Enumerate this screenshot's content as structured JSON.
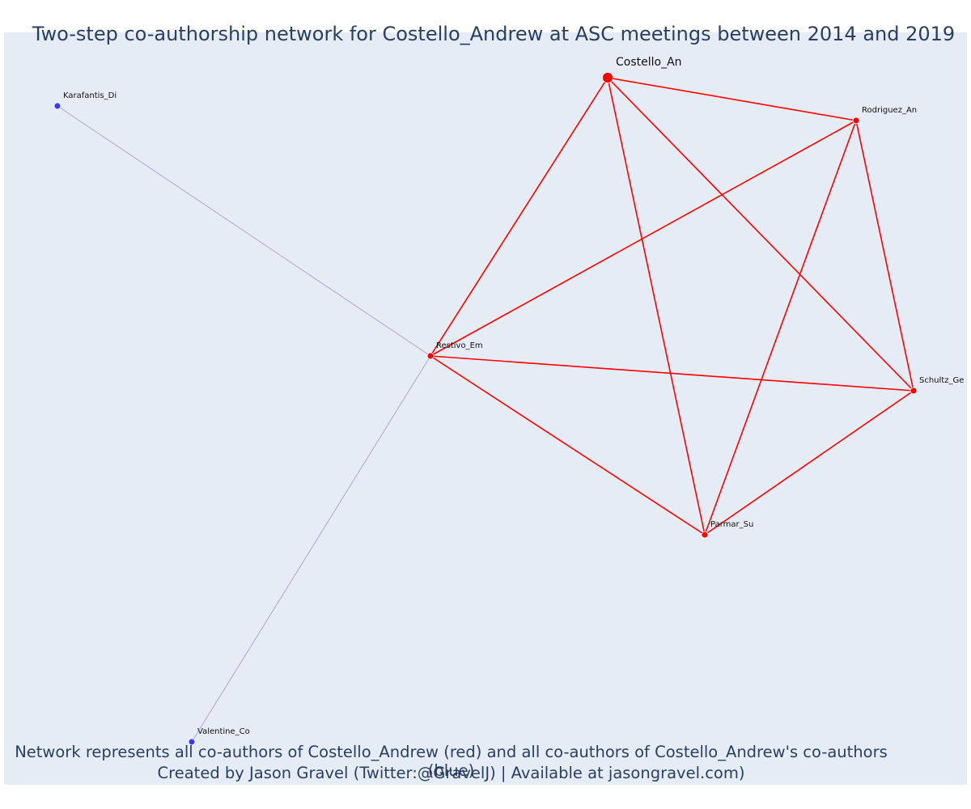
{
  "title": "Two-step co-authorship network for Costello_Andrew at ASC meetings between 2014 and 2019",
  "caption": {
    "line1": "Network represents all co-authors of Costello_Andrew (red) and all co-authors of Costello_Andrew's co-authors (blue)",
    "line2": "Created by Jason Gravel (Twitter:@GravelJ) | Available at jasongravel.com)"
  },
  "colors": {
    "background": "#e5ecf6",
    "coauthor": "#ff0000",
    "second_step": "#3b3bf0",
    "weak_edge": "#a9a9c9",
    "text": "#2a3f5f"
  },
  "nodes": [
    {
      "id": "Costello_An",
      "label": "Costello_An",
      "group": "focal"
    },
    {
      "id": "Rodriguez_An",
      "label": "Rodriguez_An",
      "group": "coauthor"
    },
    {
      "id": "Restivo_Em",
      "label": "Restivo_Em",
      "group": "coauthor"
    },
    {
      "id": "Schultz_Ge",
      "label": "Schultz_Ge",
      "group": "coauthor"
    },
    {
      "id": "Parmar_Su",
      "label": "Parmar_Su",
      "group": "coauthor"
    },
    {
      "id": "Karafantis_Di",
      "label": "Karafantis_Di",
      "group": "second_step"
    },
    {
      "id": "Valentine_Co",
      "label": "Valentine_Co",
      "group": "second_step"
    }
  ],
  "edges": [
    {
      "source": "Costello_An",
      "target": "Rodriguez_An",
      "type": "coauthor"
    },
    {
      "source": "Costello_An",
      "target": "Restivo_Em",
      "type": "coauthor"
    },
    {
      "source": "Costello_An",
      "target": "Schultz_Ge",
      "type": "coauthor"
    },
    {
      "source": "Costello_An",
      "target": "Parmar_Su",
      "type": "coauthor"
    },
    {
      "source": "Rodriguez_An",
      "target": "Restivo_Em",
      "type": "coauthor"
    },
    {
      "source": "Rodriguez_An",
      "target": "Schultz_Ge",
      "type": "coauthor"
    },
    {
      "source": "Rodriguez_An",
      "target": "Parmar_Su",
      "type": "coauthor"
    },
    {
      "source": "Restivo_Em",
      "target": "Schultz_Ge",
      "type": "coauthor"
    },
    {
      "source": "Restivo_Em",
      "target": "Parmar_Su",
      "type": "coauthor"
    },
    {
      "source": "Schultz_Ge",
      "target": "Parmar_Su",
      "type": "coauthor"
    },
    {
      "source": "Restivo_Em",
      "target": "Karafantis_Di",
      "type": "second_step"
    },
    {
      "source": "Restivo_Em",
      "target": "Valentine_Co",
      "type": "second_step"
    }
  ]
}
